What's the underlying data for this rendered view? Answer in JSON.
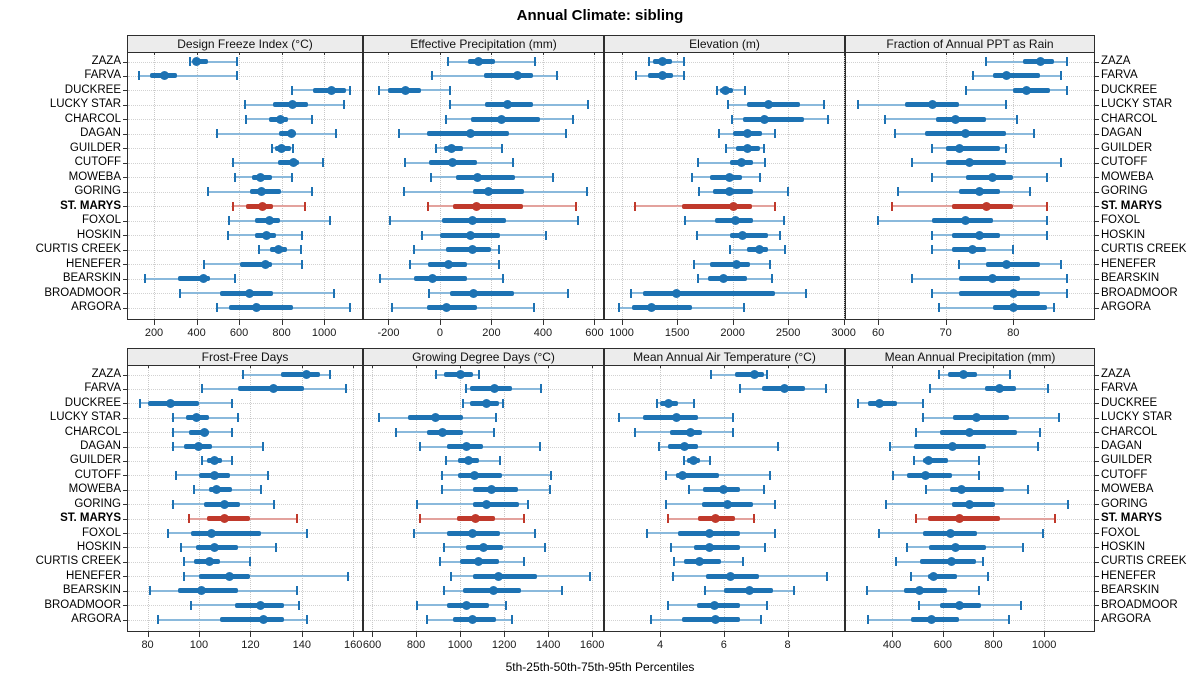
{
  "title": "Annual Climate: sibling",
  "footer": "5th-25th-50th-75th-95th Percentiles",
  "highlight_station": "ST. MARYS",
  "colors": {
    "blue": "#1d72b3",
    "blue_light": "#8ab9dc",
    "red": "#c0392b",
    "red_light": "#e3a29d",
    "grid": "#c9c9c9",
    "header_bg": "#ececec",
    "border": "#2e2e2e",
    "tick": "#333333"
  },
  "stations": [
    "ZAZA",
    "FARVA",
    "DUCKREE",
    "LUCKY STAR",
    "CHARCOL",
    "DAGAN",
    "GUILDER",
    "CUTOFF",
    "MOWEBA",
    "GORING",
    "ST. MARYS",
    "FOXOL",
    "HOSKIN",
    "CURTIS CREEK",
    "HENEFER",
    "BEARSKIN",
    "BROADMOOR",
    "ARGORA"
  ],
  "chart_data": [
    {
      "type": "interval-dotplot",
      "title": "Design Freeze Index (°C)",
      "ticks": [
        200,
        400,
        600,
        800,
        1000
      ],
      "range": [
        73,
        1183
      ],
      "percentiles": [
        "5th",
        "25th",
        "50th",
        "75th",
        "95th"
      ],
      "values": [
        [
          370,
          385,
          400,
          455,
          590
        ],
        [
          130,
          180,
          250,
          310,
          590
        ],
        [
          850,
          950,
          1035,
          1105,
          1120
        ],
        [
          630,
          760,
          850,
          925,
          1095
        ],
        [
          635,
          740,
          795,
          830,
          945
        ],
        [
          495,
          790,
          845,
          870,
          1055
        ],
        [
          755,
          770,
          800,
          845,
          852
        ],
        [
          570,
          785,
          855,
          880,
          995
        ],
        [
          580,
          660,
          700,
          755,
          850
        ],
        [
          455,
          650,
          705,
          795,
          945
        ],
        [
          570,
          635,
          710,
          760,
          910
        ],
        [
          555,
          675,
          745,
          795,
          1030
        ],
        [
          550,
          675,
          730,
          775,
          895
        ],
        [
          695,
          745,
          785,
          825,
          890
        ],
        [
          435,
          605,
          725,
          755,
          895
        ],
        [
          160,
          315,
          435,
          465,
          580
        ],
        [
          320,
          510,
          650,
          760,
          1045
        ],
        [
          495,
          555,
          680,
          855,
          1120
        ]
      ]
    },
    {
      "type": "interval-dotplot",
      "title": "Effective Precipitation (mm)",
      "ticks": [
        -200,
        0,
        200,
        400,
        600
      ],
      "range": [
        -299,
        637
      ],
      "values": [
        [
          30,
          110,
          150,
          215,
          370
        ],
        [
          -30,
          170,
          300,
          360,
          455
        ],
        [
          -235,
          -200,
          -133,
          -75,
          40
        ],
        [
          40,
          175,
          263,
          362,
          573
        ],
        [
          23,
          120,
          240,
          388,
          515
        ],
        [
          -160,
          -50,
          120,
          268,
          490
        ],
        [
          -15,
          17,
          45,
          90,
          240
        ],
        [
          -135,
          -43,
          49,
          142,
          282
        ],
        [
          -36,
          61,
          146,
          291,
          440
        ],
        [
          -140,
          130,
          190,
          325,
          570
        ],
        [
          -48,
          52,
          142,
          324,
          530
        ],
        [
          -195,
          7,
          125,
          255,
          537
        ],
        [
          -70,
          0,
          117,
          233,
          410
        ],
        [
          -100,
          25,
          125,
          198,
          230
        ],
        [
          -115,
          -45,
          32,
          104,
          230
        ],
        [
          -233,
          -100,
          -28,
          106,
          246
        ],
        [
          -43,
          39,
          129,
          289,
          496
        ],
        [
          -185,
          -52,
          26,
          145,
          366
        ]
      ]
    },
    {
      "type": "interval-dotplot",
      "title": "Elevation (m)",
      "ticks": [
        1000,
        1500,
        2000,
        2500,
        3000
      ],
      "range": [
        841,
        3012
      ],
      "values": [
        [
          1250,
          1285,
          1370,
          1450,
          1565
        ],
        [
          1130,
          1240,
          1370,
          1460,
          1565
        ],
        [
          1860,
          1890,
          1940,
          2005,
          2115
        ],
        [
          1960,
          2125,
          2325,
          2605,
          2820
        ],
        [
          1995,
          2095,
          2290,
          2645,
          2855
        ],
        [
          1875,
          2005,
          2135,
          2265,
          2385
        ],
        [
          1940,
          2030,
          2130,
          2250,
          2280
        ],
        [
          1690,
          1975,
          2080,
          2185,
          2295
        ],
        [
          1635,
          1795,
          1970,
          2080,
          2245
        ],
        [
          1695,
          1825,
          1975,
          2185,
          2500
        ],
        [
          1120,
          1540,
          2005,
          2170,
          2380
        ],
        [
          1570,
          1840,
          2030,
          2185,
          2465
        ],
        [
          1675,
          1975,
          2090,
          2320,
          2425
        ],
        [
          1975,
          2125,
          2240,
          2320,
          2475
        ],
        [
          1655,
          1795,
          2035,
          2155,
          2335
        ],
        [
          1690,
          1780,
          1915,
          2125,
          2350
        ],
        [
          1085,
          1195,
          1495,
          2380,
          2665
        ],
        [
          975,
          1090,
          1270,
          1630,
          2100
        ]
      ]
    },
    {
      "type": "interval-dotplot",
      "title": "Fraction of Annual PPT as Rain",
      "ticks": [
        60,
        70,
        80
      ],
      "range": [
        55.1,
        92.1
      ],
      "values": [
        [
          76,
          81.5,
          84,
          86,
          88
        ],
        [
          74,
          77,
          79,
          84,
          87
        ],
        [
          73,
          80,
          82,
          85.5,
          88
        ],
        [
          57,
          64,
          68,
          72,
          79
        ],
        [
          61,
          68.5,
          71.5,
          76,
          80.5
        ],
        [
          62.5,
          67,
          73,
          79,
          83
        ],
        [
          68,
          70,
          72,
          78,
          79
        ],
        [
          65,
          70,
          73.5,
          79,
          87
        ],
        [
          68,
          73,
          77,
          80,
          85
        ],
        [
          63,
          72,
          75,
          78,
          82.5
        ],
        [
          62,
          71,
          76,
          80,
          85
        ],
        [
          60,
          68,
          73,
          77,
          85
        ],
        [
          68,
          71,
          75,
          78,
          85
        ],
        [
          68,
          71,
          74,
          76,
          80
        ],
        [
          72,
          76,
          79,
          84,
          87
        ],
        [
          65,
          72,
          77,
          81,
          88
        ],
        [
          68,
          72,
          80,
          84,
          88
        ],
        [
          69,
          77,
          80,
          85,
          86
        ]
      ]
    },
    {
      "type": "interval-dotplot",
      "title": "Frost-Free Days",
      "ticks": [
        80,
        100,
        120,
        140,
        160
      ],
      "range": [
        72,
        163.8
      ],
      "values": [
        [
          117,
          132,
          142,
          147,
          151
        ],
        [
          101,
          115,
          129,
          141,
          157
        ],
        [
          77,
          80,
          89,
          100,
          113
        ],
        [
          90,
          95,
          99,
          104,
          115
        ],
        [
          90,
          96,
          102,
          104,
          113
        ],
        [
          90,
          94,
          100,
          105,
          125
        ],
        [
          101,
          103,
          106,
          109,
          113
        ],
        [
          91,
          100,
          106,
          112,
          127
        ],
        [
          98,
          104,
          107,
          113,
          124
        ],
        [
          90,
          102,
          110,
          116,
          129
        ],
        [
          96,
          103,
          110,
          120,
          138
        ],
        [
          88,
          97,
          105,
          124,
          142
        ],
        [
          93,
          99,
          106,
          115,
          130
        ],
        [
          94,
          98,
          104,
          108,
          120
        ],
        [
          94,
          100,
          112,
          120,
          158
        ],
        [
          81,
          92,
          101,
          115,
          138
        ],
        [
          97,
          114,
          124,
          133,
          139
        ],
        [
          84,
          108,
          125,
          133,
          142
        ]
      ]
    },
    {
      "type": "interval-dotplot",
      "title": "Growing Degree Days (°C)",
      "ticks": [
        600,
        800,
        1000,
        1200,
        1400,
        1600
      ],
      "range": [
        559,
        1654
      ],
      "values": [
        [
          890,
          925,
          1000,
          1060,
          1085
        ],
        [
          1025,
          1045,
          1155,
          1235,
          1370
        ],
        [
          1015,
          1045,
          1120,
          1175,
          1195
        ],
        [
          630,
          765,
          890,
          1015,
          1165
        ],
        [
          710,
          850,
          920,
          1015,
          1155
        ],
        [
          820,
          940,
          1030,
          1105,
          1365
        ],
        [
          935,
          990,
          1040,
          1085,
          1180
        ],
        [
          920,
          990,
          1065,
          1190,
          1415
        ],
        [
          920,
          1060,
          1145,
          1265,
          1410
        ],
        [
          805,
          1060,
          1120,
          1270,
          1310
        ],
        [
          820,
          985,
          1070,
          1160,
          1290
        ],
        [
          790,
          940,
          1055,
          1180,
          1340
        ],
        [
          925,
          1025,
          1105,
          1195,
          1385
        ],
        [
          910,
          1000,
          1085,
          1175,
          1290
        ],
        [
          960,
          1060,
          1175,
          1350,
          1590
        ],
        [
          925,
          1015,
          1150,
          1275,
          1465
        ],
        [
          805,
          940,
          1030,
          1130,
          1210
        ],
        [
          850,
          970,
          1055,
          1165,
          1235
        ]
      ]
    },
    {
      "type": "interval-dotplot",
      "title": "Mean Annual Air Temperature (°C)",
      "ticks": [
        4,
        6,
        8
      ],
      "range": [
        2.24,
        9.8
      ],
      "values": [
        [
          5.6,
          6.35,
          6.95,
          7.25,
          7.35
        ],
        [
          6.5,
          7.2,
          7.9,
          8.55,
          9.2
        ],
        [
          3.9,
          4.0,
          4.25,
          4.55,
          5.05
        ],
        [
          2.7,
          3.45,
          4.5,
          5.2,
          6.3
        ],
        [
          3.2,
          4.3,
          4.95,
          5.3,
          6.3
        ],
        [
          3.95,
          4.25,
          4.75,
          5.2,
          7.7
        ],
        [
          4.75,
          4.85,
          5.05,
          5.25,
          5.55
        ],
        [
          4.2,
          4.5,
          4.7,
          5.85,
          7.45
        ],
        [
          4.9,
          5.35,
          6.0,
          6.5,
          7.25
        ],
        [
          4.2,
          5.3,
          6.1,
          6.9,
          7.6
        ],
        [
          4.25,
          5.2,
          5.75,
          6.35,
          6.95
        ],
        [
          3.6,
          4.55,
          5.55,
          6.5,
          7.6
        ],
        [
          4.35,
          5.05,
          5.55,
          6.5,
          7.3
        ],
        [
          4.45,
          4.75,
          5.25,
          5.9,
          6.6
        ],
        [
          4.4,
          5.45,
          6.2,
          7.1,
          9.25
        ],
        [
          5.4,
          6.0,
          6.8,
          7.55,
          8.2
        ],
        [
          4.25,
          5.15,
          5.7,
          6.5,
          7.35
        ],
        [
          3.7,
          4.7,
          5.75,
          6.5,
          7.15
        ]
      ]
    },
    {
      "type": "interval-dotplot",
      "title": "Mean Annual Precipitation (mm)",
      "ticks": [
        400,
        600,
        800,
        1000
      ],
      "range": [
        214,
        1201
      ],
      "values": [
        [
          585,
          620,
          680,
          735,
          865
        ],
        [
          550,
          765,
          825,
          890,
          1015
        ],
        [
          265,
          305,
          350,
          420,
          520
        ],
        [
          520,
          640,
          735,
          860,
          1060
        ],
        [
          495,
          590,
          705,
          895,
          985
        ],
        [
          390,
          485,
          640,
          770,
          975
        ],
        [
          485,
          520,
          545,
          620,
          745
        ],
        [
          405,
          460,
          530,
          635,
          745
        ],
        [
          535,
          630,
          675,
          840,
          935
        ],
        [
          375,
          635,
          705,
          805,
          1095
        ],
        [
          495,
          540,
          665,
          825,
          1045
        ],
        [
          350,
          520,
          630,
          735,
          995
        ],
        [
          460,
          545,
          650,
          770,
          915
        ],
        [
          415,
          510,
          635,
          730,
          760
        ],
        [
          475,
          540,
          565,
          655,
          780
        ],
        [
          300,
          445,
          510,
          615,
          745
        ],
        [
          505,
          590,
          665,
          750,
          910
        ],
        [
          305,
          475,
          555,
          665,
          860
        ]
      ]
    }
  ]
}
